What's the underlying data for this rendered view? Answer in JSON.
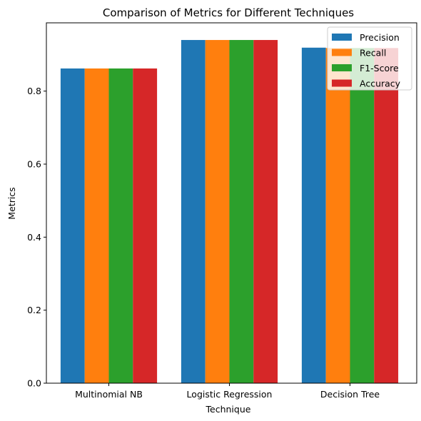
{
  "chart_data": {
    "type": "bar",
    "title": "Comparison of Metrics for Different Techniques",
    "xlabel": "Technique",
    "ylabel": "Metrics",
    "categories": [
      "Multinomial NB",
      "Logistic Regression",
      "Decision Tree"
    ],
    "series": [
      {
        "name": "Precision",
        "color": "#1f77b4",
        "values": [
          0.862,
          0.94,
          0.919
        ]
      },
      {
        "name": "Recall",
        "color": "#ff7f0e",
        "values": [
          0.862,
          0.94,
          0.918
        ]
      },
      {
        "name": "F1-Score",
        "color": "#2ca02c",
        "values": [
          0.862,
          0.94,
          0.918
        ]
      },
      {
        "name": "Accuracy",
        "color": "#d62728",
        "values": [
          0.862,
          0.94,
          0.918
        ]
      }
    ],
    "ylim": [
      0,
      0.987
    ],
    "yticks": [
      "0.0",
      "0.2",
      "0.4",
      "0.6",
      "0.8"
    ],
    "ytick_values": [
      0,
      0.2,
      0.4,
      0.6,
      0.8
    ],
    "grid": false,
    "legend_position": "top-right"
  }
}
